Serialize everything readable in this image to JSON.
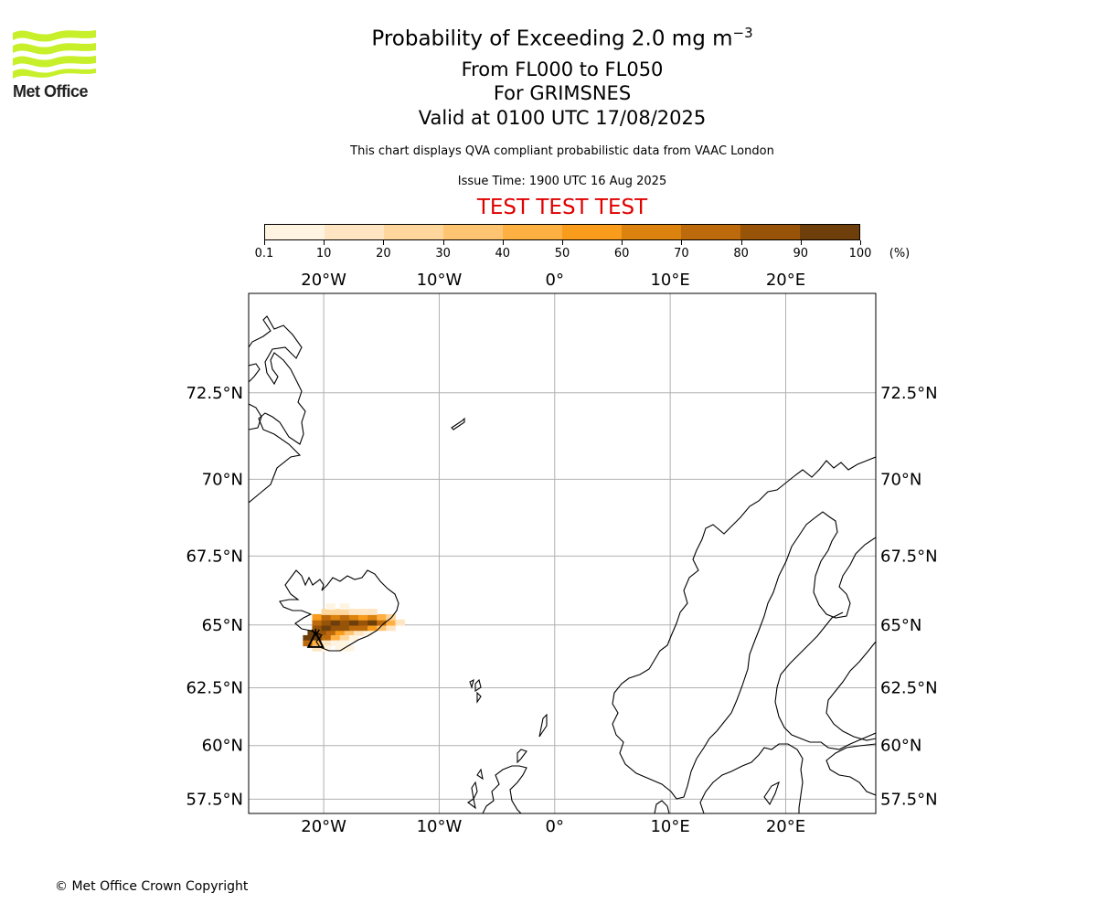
{
  "logo": {
    "text": "Met Office",
    "colors": {
      "waves": "#c8f02a",
      "text": "#222222"
    }
  },
  "header": {
    "title": "Probability of Exceeding 2.0 mg m",
    "title_superscript": "−3",
    "level_range": "From FL000 to FL050",
    "volcano": "For GRIMSNES",
    "valid_time": "Valid at 0100 UTC 17/08/2025",
    "description": "This chart displays QVA compliant probabilistic data from VAAC London",
    "issue_time": "Issue Time: 1900 UTC 16 Aug 2025",
    "test_banner": "TEST TEST TEST",
    "test_banner_color": "#e00000"
  },
  "colorbar": {
    "unit": "(%)",
    "ticks": [
      "0.1",
      "10",
      "20",
      "30",
      "40",
      "50",
      "60",
      "70",
      "80",
      "90",
      "100"
    ],
    "colors": [
      "#fff4e1",
      "#ffe5c2",
      "#ffd79d",
      "#ffc472",
      "#ffb043",
      "#f99c1c",
      "#dc820e",
      "#bc6a0b",
      "#975408",
      "#6e3f0a"
    ]
  },
  "map": {
    "projection": "mercator",
    "lon_range": [
      -26.5,
      27.8
    ],
    "lat_range": [
      56.8,
      75.0
    ],
    "gridlines": true,
    "top_lon_labels": [
      "20°W",
      "10°W",
      "0°",
      "10°E",
      "20°E"
    ],
    "bottom_lon_labels": [
      "20°W",
      "10°W",
      "0°",
      "10°E",
      "20°E"
    ],
    "lat_labels": [
      "72.5°N",
      "70°N",
      "67.5°N",
      "65°N",
      "62.5°N",
      "60°N",
      "57.5°N"
    ],
    "volcano_marker": {
      "name": "GRIMSNES",
      "lon": -20.7,
      "lat": 64.4
    },
    "probability_field": {
      "description_units": "percent",
      "cell_size_deg": {
        "lon": 0.8,
        "lat": 0.22
      },
      "cells": [
        {
          "lon": -21.0,
          "lat": 64.7,
          "p": 95
        },
        {
          "lon": -20.2,
          "lat": 64.7,
          "p": 85
        },
        {
          "lon": -19.4,
          "lat": 64.7,
          "p": 75
        },
        {
          "lon": -18.6,
          "lat": 64.7,
          "p": 55
        },
        {
          "lon": -17.8,
          "lat": 64.7,
          "p": 35
        },
        {
          "lon": -17.0,
          "lat": 64.7,
          "p": 15
        },
        {
          "lon": -16.2,
          "lat": 64.7,
          "p": 8
        },
        {
          "lon": -21.4,
          "lat": 64.5,
          "p": 95
        },
        {
          "lon": -20.6,
          "lat": 64.5,
          "p": 90
        },
        {
          "lon": -19.8,
          "lat": 64.5,
          "p": 75
        },
        {
          "lon": -19.0,
          "lat": 64.5,
          "p": 40
        },
        {
          "lon": -18.2,
          "lat": 64.5,
          "p": 20
        },
        {
          "lon": -17.4,
          "lat": 64.5,
          "p": 8
        },
        {
          "lon": -21.4,
          "lat": 64.3,
          "p": 70
        },
        {
          "lon": -20.6,
          "lat": 64.3,
          "p": 45
        },
        {
          "lon": -19.8,
          "lat": 64.3,
          "p": 15
        },
        {
          "lon": -20.6,
          "lat": 64.9,
          "p": 85
        },
        {
          "lon": -19.8,
          "lat": 64.9,
          "p": 90
        },
        {
          "lon": -19.0,
          "lat": 64.9,
          "p": 80
        },
        {
          "lon": -18.2,
          "lat": 64.9,
          "p": 85
        },
        {
          "lon": -17.4,
          "lat": 64.9,
          "p": 75
        },
        {
          "lon": -16.6,
          "lat": 64.9,
          "p": 70
        },
        {
          "lon": -15.8,
          "lat": 64.9,
          "p": 55
        },
        {
          "lon": -15.0,
          "lat": 64.9,
          "p": 30
        },
        {
          "lon": -14.2,
          "lat": 64.9,
          "p": 12
        },
        {
          "lon": -20.6,
          "lat": 65.1,
          "p": 70
        },
        {
          "lon": -19.8,
          "lat": 65.1,
          "p": 88
        },
        {
          "lon": -19.0,
          "lat": 65.1,
          "p": 92
        },
        {
          "lon": -18.2,
          "lat": 65.1,
          "p": 85
        },
        {
          "lon": -17.4,
          "lat": 65.1,
          "p": 95
        },
        {
          "lon": -16.6,
          "lat": 65.1,
          "p": 80
        },
        {
          "lon": -15.8,
          "lat": 65.1,
          "p": 92
        },
        {
          "lon": -15.0,
          "lat": 65.1,
          "p": 75
        },
        {
          "lon": -14.2,
          "lat": 65.1,
          "p": 40
        },
        {
          "lon": -13.4,
          "lat": 65.1,
          "p": 10
        },
        {
          "lon": -20.6,
          "lat": 65.3,
          "p": 55
        },
        {
          "lon": -19.8,
          "lat": 65.3,
          "p": 75
        },
        {
          "lon": -19.0,
          "lat": 65.3,
          "p": 65
        },
        {
          "lon": -18.2,
          "lat": 65.3,
          "p": 75
        },
        {
          "lon": -17.4,
          "lat": 65.3,
          "p": 60
        },
        {
          "lon": -16.6,
          "lat": 65.3,
          "p": 55
        },
        {
          "lon": -15.8,
          "lat": 65.3,
          "p": 65
        },
        {
          "lon": -15.0,
          "lat": 65.3,
          "p": 45
        },
        {
          "lon": -14.2,
          "lat": 65.3,
          "p": 25
        },
        {
          "lon": -19.8,
          "lat": 65.5,
          "p": 20
        },
        {
          "lon": -19.0,
          "lat": 65.5,
          "p": 25
        },
        {
          "lon": -18.2,
          "lat": 65.5,
          "p": 20
        },
        {
          "lon": -17.4,
          "lat": 65.5,
          "p": 15
        },
        {
          "lon": -16.6,
          "lat": 65.5,
          "p": 12
        },
        {
          "lon": -15.8,
          "lat": 65.5,
          "p": 10
        },
        {
          "lon": -20.6,
          "lat": 64.1,
          "p": 12
        },
        {
          "lon": -19.8,
          "lat": 64.1,
          "p": 8
        },
        {
          "lon": -19.0,
          "lat": 64.3,
          "p": 8
        },
        {
          "lon": -18.2,
          "lat": 64.3,
          "p": 5
        },
        {
          "lon": -18.6,
          "lat": 64.1,
          "p": 4
        },
        {
          "lon": -17.8,
          "lat": 64.1,
          "p": 3
        },
        {
          "lon": -19.4,
          "lat": 65.7,
          "p": 5
        },
        {
          "lon": -18.2,
          "lat": 65.7,
          "p": 4
        }
      ]
    }
  },
  "footer": {
    "copyright": "© Met Office Crown Copyright"
  }
}
